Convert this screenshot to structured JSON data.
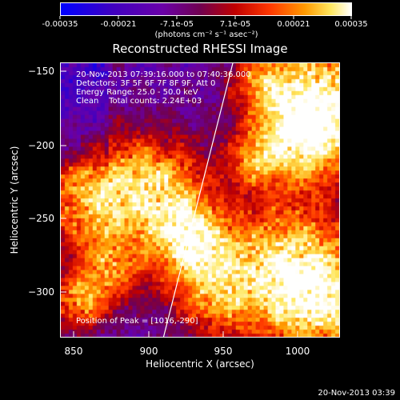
{
  "colorbar": {
    "tick_labels": [
      "-0.00035",
      "-0.00021",
      "-7.1e-05",
      "7.1e-05",
      "0.00021",
      "0.00035"
    ],
    "units": "(photons cm⁻² s⁻¹ asec⁻²)",
    "colors": [
      "#0000ff",
      "#5a00b0",
      "#8a00a0",
      "#7a0040",
      "#c00000",
      "#ff3000",
      "#ff9000",
      "#ffe050",
      "#ffffff"
    ]
  },
  "title": "Reconstructed RHESSI Image",
  "info": {
    "time": "20-Nov-2013 07:39:16.000 to 07:40:36.000",
    "detectors": "Detectors: 3F 5F 6F 7F 8F 9F, Att 0",
    "energy": "Energy Range: 25.0 - 50.0 keV",
    "clean": "Clean    Total counts: 2.24E+03"
  },
  "peak": "Position of Peak = [1016,-290]",
  "axes": {
    "xlabel": "Heliocentric X (arcsec)",
    "ylabel": "Heliocentric Y (arcsec)",
    "xticks": [
      "850",
      "900",
      "950",
      "1000"
    ],
    "yticks": [
      "−150",
      "−200",
      "−250",
      "−300"
    ]
  },
  "footer": "20-Nov-2013 03:39"
}
